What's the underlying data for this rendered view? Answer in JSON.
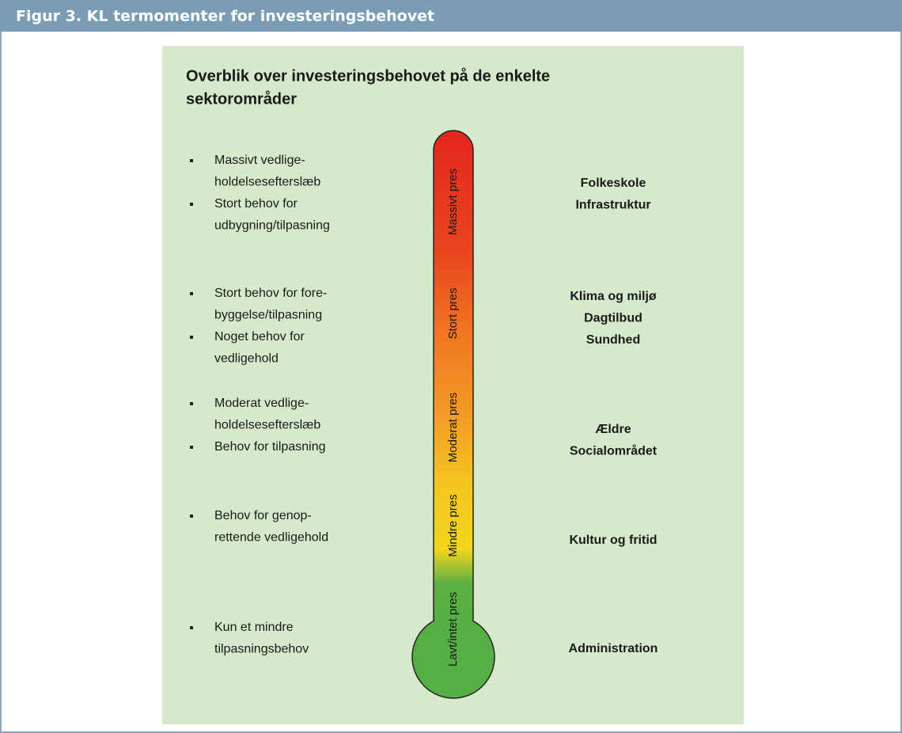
{
  "header": {
    "title": "Figur 3. KL termomenter for investeringsbehovet"
  },
  "panel": {
    "title_lines": [
      "Overblik over investeringsbehovet på de enkelte",
      "sektorområder"
    ]
  },
  "levels": [
    {
      "label": "Massivt pres",
      "bullets": [
        [
          "Massivt vedlige-",
          "holdelsesefterslæb"
        ],
        [
          "Stort behov for",
          "udbygning/tilpasning"
        ]
      ],
      "sectors": [
        "Folkeskole",
        "Infrastruktur"
      ]
    },
    {
      "label": "Stort pres",
      "bullets": [
        [
          "Stort behov for fore-",
          "byggelse/tilpasning"
        ],
        [
          "Noget behov for",
          "vedligehold"
        ]
      ],
      "sectors": [
        "Klima og miljø",
        "Dagtilbud",
        "Sundhed"
      ]
    },
    {
      "label": "Moderat pres",
      "bullets": [
        [
          "Moderat vedlige-",
          "holdelsesefterslæb"
        ],
        [
          "Behov for tilpasning"
        ]
      ],
      "sectors": [
        "Ældre",
        "Socialområdet"
      ]
    },
    {
      "label": "Mindre pres",
      "bullets": [
        [
          "Behov for genop-",
          "rettende vedligehold"
        ]
      ],
      "sectors": [
        "Kultur og fritid"
      ]
    },
    {
      "label": "Lavt/intet pres",
      "bullets": [
        [
          "Kun et mindre",
          "tilpasningsbehov"
        ]
      ],
      "sectors": [
        "Administration"
      ]
    }
  ]
}
